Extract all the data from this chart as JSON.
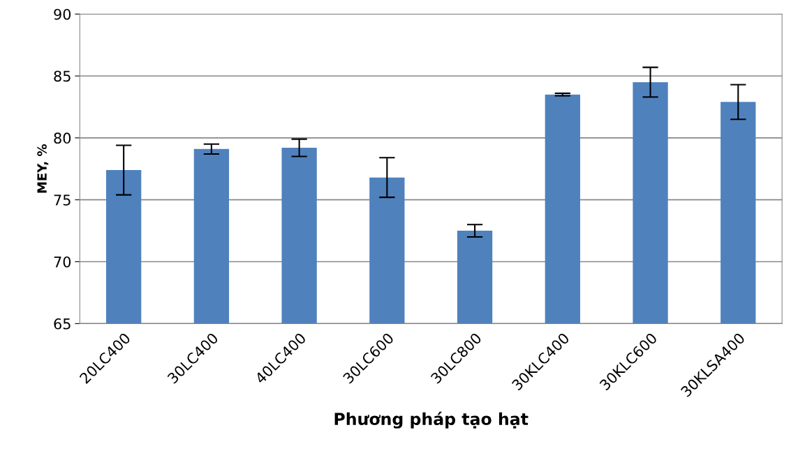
{
  "chart_data": {
    "type": "bar",
    "xlabel": "Phương pháp tạo hạt",
    "ylabel": "MEY, %",
    "categories": [
      "20LC400",
      "30LC400",
      "40LC400",
      "30LC600",
      "30LC800",
      "30KLC400",
      "30KLC600",
      "30KLSA400"
    ],
    "values": [
      77.4,
      79.1,
      79.2,
      76.8,
      72.5,
      83.5,
      84.5,
      82.9
    ],
    "errors": [
      2.0,
      0.4,
      0.7,
      1.6,
      0.5,
      0.1,
      1.2,
      1.4
    ],
    "color": "#4f81bd",
    "ylim": [
      65,
      90
    ],
    "yticks": [
      65,
      70,
      75,
      80,
      85,
      90
    ],
    "grid": "y",
    "legend": false
  }
}
